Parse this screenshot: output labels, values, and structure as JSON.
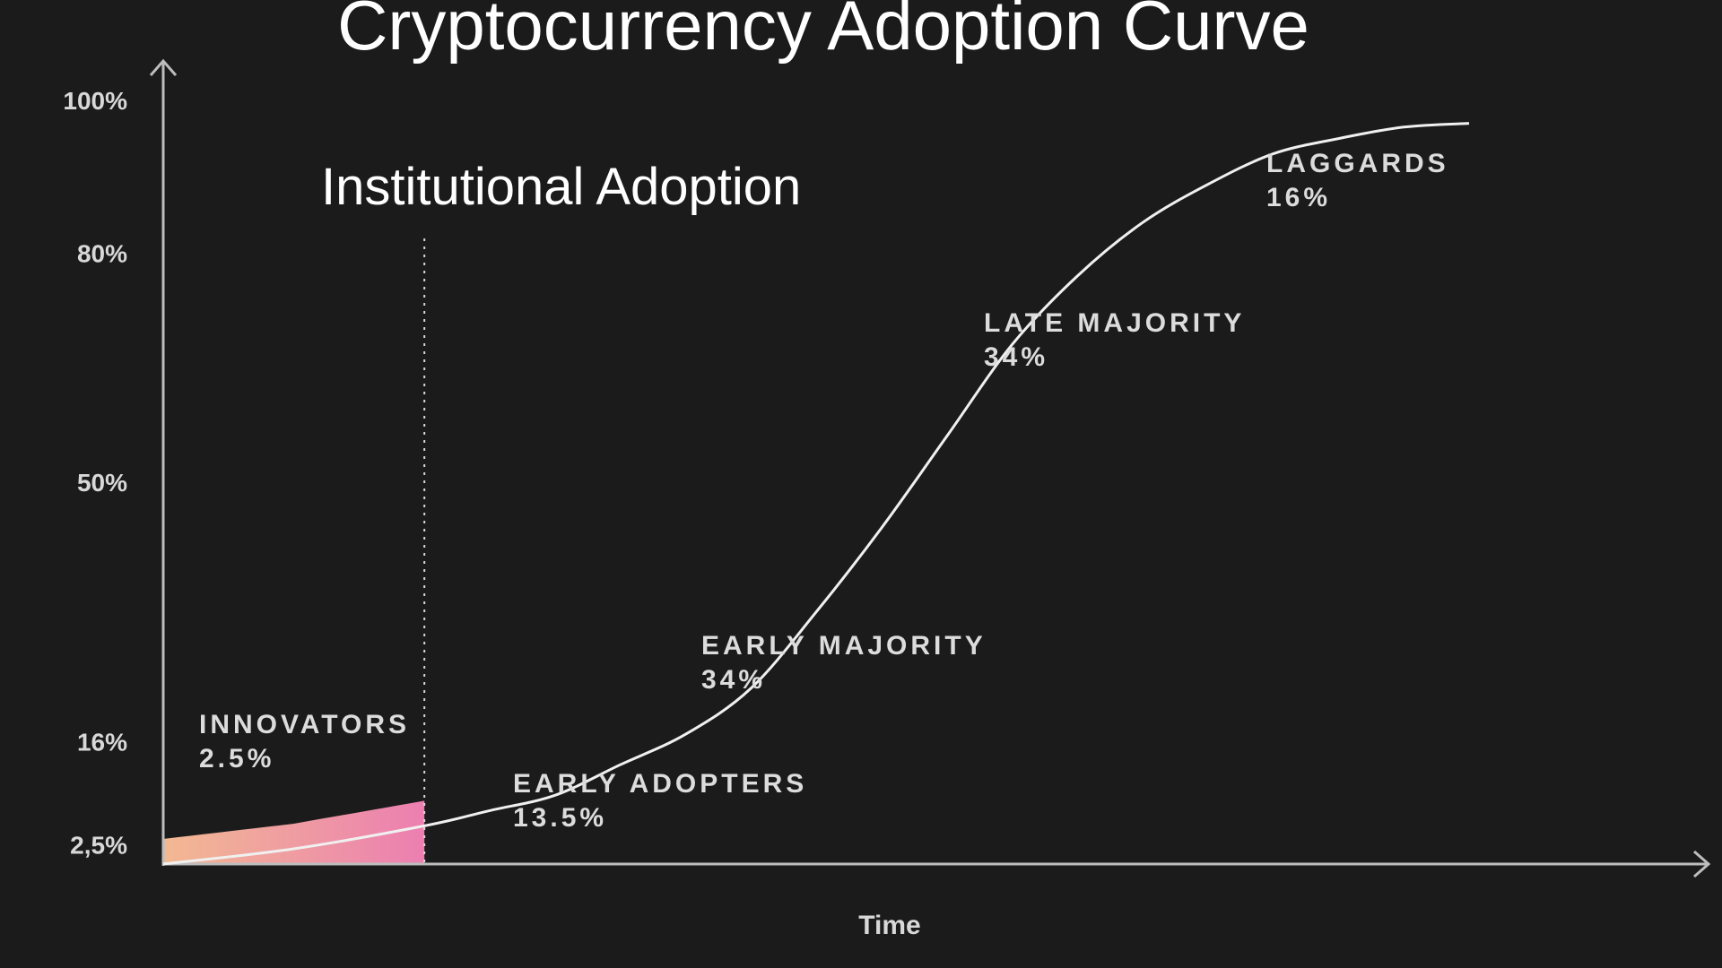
{
  "chart_data": {
    "type": "line",
    "title": "Cryptocurrency Adoption Curve",
    "xlabel": "Time",
    "ylabel": "",
    "y_ticks": [
      "100%",
      "80%",
      "50%",
      "16%",
      "2,5%"
    ],
    "y_tick_values": [
      100,
      80,
      50,
      16,
      2.5
    ],
    "annotation": {
      "label": "Institutional Adoption",
      "style": "dotted vertical line"
    },
    "series": [
      {
        "x": [
          0,
          10,
          20,
          25,
          30,
          35,
          40,
          45,
          50,
          55,
          60,
          65,
          70,
          75,
          80,
          85,
          90,
          95,
          100
        ],
        "values": [
          0,
          2,
          5,
          7,
          9,
          13,
          17,
          23,
          33,
          44,
          56,
          68,
          77,
          84,
          89,
          93,
          95,
          96.5,
          97
        ]
      }
    ],
    "segments": [
      {
        "name": "INNOVATORS",
        "share": "2.5%"
      },
      {
        "name": "EARLY ADOPTERS",
        "share": "13.5%"
      },
      {
        "name": "EARLY MAJORITY",
        "share": "34%"
      },
      {
        "name": "LATE MAJORITY",
        "share": "34%"
      },
      {
        "name": "LAGGARDS",
        "share": "16%"
      }
    ],
    "shaded_region": {
      "segment": "INNOVATORS",
      "gradient": [
        "#f2b992",
        "#ec7fb1"
      ]
    },
    "colors": {
      "background": "#1b1b1b",
      "curve": "#f0f0f0",
      "axis": "#bdbdbd",
      "text": "#ffffff"
    },
    "grid": false,
    "legend": "none"
  }
}
